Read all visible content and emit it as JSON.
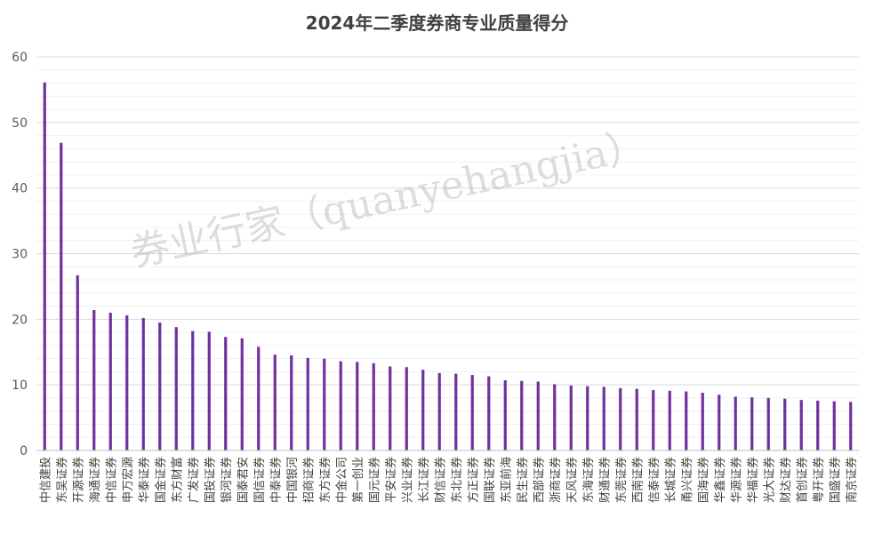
{
  "chart_data": {
    "type": "bar",
    "title": "2024年二季度券商专业质量得分",
    "xlabel": "",
    "ylabel": "",
    "ylim": [
      0,
      60
    ],
    "yticks": [
      0,
      10,
      20,
      30,
      40,
      50,
      60
    ],
    "grid": true,
    "legend": "none",
    "bar_color": "#7030A0",
    "categories": [
      "中信建投",
      "东吴证券",
      "开源证券",
      "海通证券",
      "中信证券",
      "申万宏源",
      "华泰证券",
      "国金证券",
      "东方财富",
      "广发证券",
      "国投证券",
      "银河证券",
      "国泰君安",
      "国信证券",
      "中泰证券",
      "中国银河",
      "招商证券",
      "东方证券",
      "中金公司",
      "第一创业",
      "国元证券",
      "平安证券",
      "兴业证券",
      "长江证券",
      "财信证券",
      "东北证券",
      "方正证券",
      "国联证券",
      "东亚前海",
      "民生证券",
      "西部证券",
      "浙商证券",
      "天风证券",
      "东海证券",
      "财通证券",
      "东莞证券",
      "西南证券",
      "信泰证券",
      "长城证券",
      "甬兴证券",
      "国海证券",
      "华鑫证券",
      "华源证券",
      "华福证券",
      "光大证券",
      "财达证券",
      "首创证券",
      "粤开证券",
      "国盛证券",
      "南京证券"
    ],
    "values": [
      56.1,
      46.9,
      26.7,
      21.4,
      21.0,
      20.6,
      20.2,
      19.5,
      18.8,
      18.2,
      18.1,
      17.3,
      17.1,
      15.8,
      14.6,
      14.5,
      14.1,
      14.0,
      13.6,
      13.5,
      13.3,
      12.8,
      12.7,
      12.3,
      11.8,
      11.7,
      11.5,
      11.3,
      10.7,
      10.6,
      10.5,
      10.1,
      9.9,
      9.8,
      9.7,
      9.5,
      9.4,
      9.2,
      9.1,
      9.0,
      8.8,
      8.5,
      8.2,
      8.1,
      8.0,
      7.9,
      7.7,
      7.6,
      7.5,
      7.4
    ]
  },
  "watermark": "券业行家（quanyehangjia）"
}
